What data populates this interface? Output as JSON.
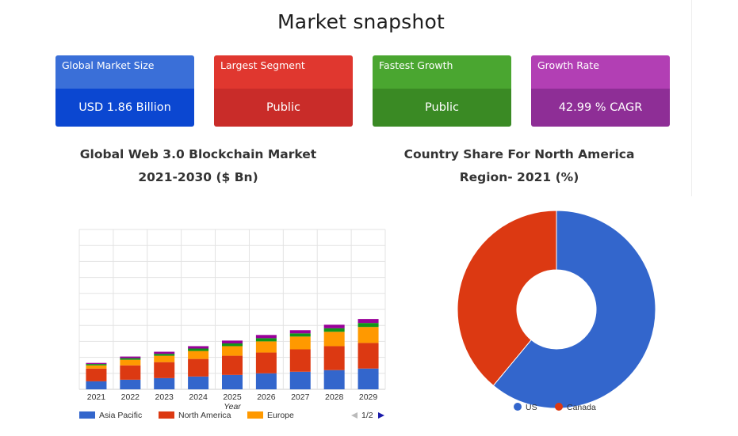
{
  "title": "Market snapshot",
  "cards": [
    {
      "label": "Global Market Size",
      "value": "USD 1.86 Billion",
      "label_color": "#3a6fd8",
      "value_color": "#0b47d1"
    },
    {
      "label": "Largest Segment",
      "value": "Public",
      "label_color": "#e0372f",
      "value_color": "#c92c29"
    },
    {
      "label": "Fastest Growth",
      "value": "Public",
      "label_color": "#4aa630",
      "value_color": "#3a8a24"
    },
    {
      "label": "Growth Rate",
      "value": "42.99 % CAGR",
      "label_color": "#b23fb4",
      "value_color": "#8e2e96"
    }
  ],
  "bar_section_title": [
    "Global Web 3.0 Blockchain Market",
    "2021-2030 ($ Bn)"
  ],
  "pie_section_title": [
    "Country Share For North America",
    "Region- 2021 (%)"
  ],
  "chart_data": [
    {
      "type": "bar",
      "stacked": true,
      "categories": [
        "2021",
        "2022",
        "2023",
        "2024",
        "2025",
        "2026",
        "2027",
        "2028",
        "2029"
      ],
      "xlabel": "Year",
      "ylabel": "",
      "ylim": [
        0,
        10
      ],
      "grid": true,
      "series": [
        {
          "name": "Asia Pacific",
          "color": "#3366cc",
          "values": [
            0.5,
            0.6,
            0.7,
            0.8,
            0.9,
            1.0,
            1.1,
            1.2,
            1.3
          ]
        },
        {
          "name": "North America",
          "color": "#dc3912",
          "values": [
            0.8,
            0.9,
            1.0,
            1.1,
            1.2,
            1.3,
            1.4,
            1.5,
            1.6
          ]
        },
        {
          "name": "Europe",
          "color": "#ff9900",
          "values": [
            0.2,
            0.35,
            0.4,
            0.5,
            0.6,
            0.7,
            0.8,
            0.9,
            1.0
          ]
        },
        {
          "name": "",
          "color": "#109618",
          "values": [
            0.08,
            0.1,
            0.12,
            0.15,
            0.17,
            0.2,
            0.2,
            0.22,
            0.25
          ]
        },
        {
          "name": "",
          "color": "#990099",
          "values": [
            0.07,
            0.1,
            0.13,
            0.15,
            0.18,
            0.2,
            0.2,
            0.22,
            0.25
          ]
        }
      ],
      "legend_position": "bottom",
      "legend_page": "1/2"
    },
    {
      "type": "pie",
      "donut": true,
      "labels": [
        "US",
        "Canada"
      ],
      "values": [
        61,
        39
      ],
      "colors": [
        "#3366cc",
        "#dc3912"
      ],
      "legend_position": "bottom"
    }
  ]
}
